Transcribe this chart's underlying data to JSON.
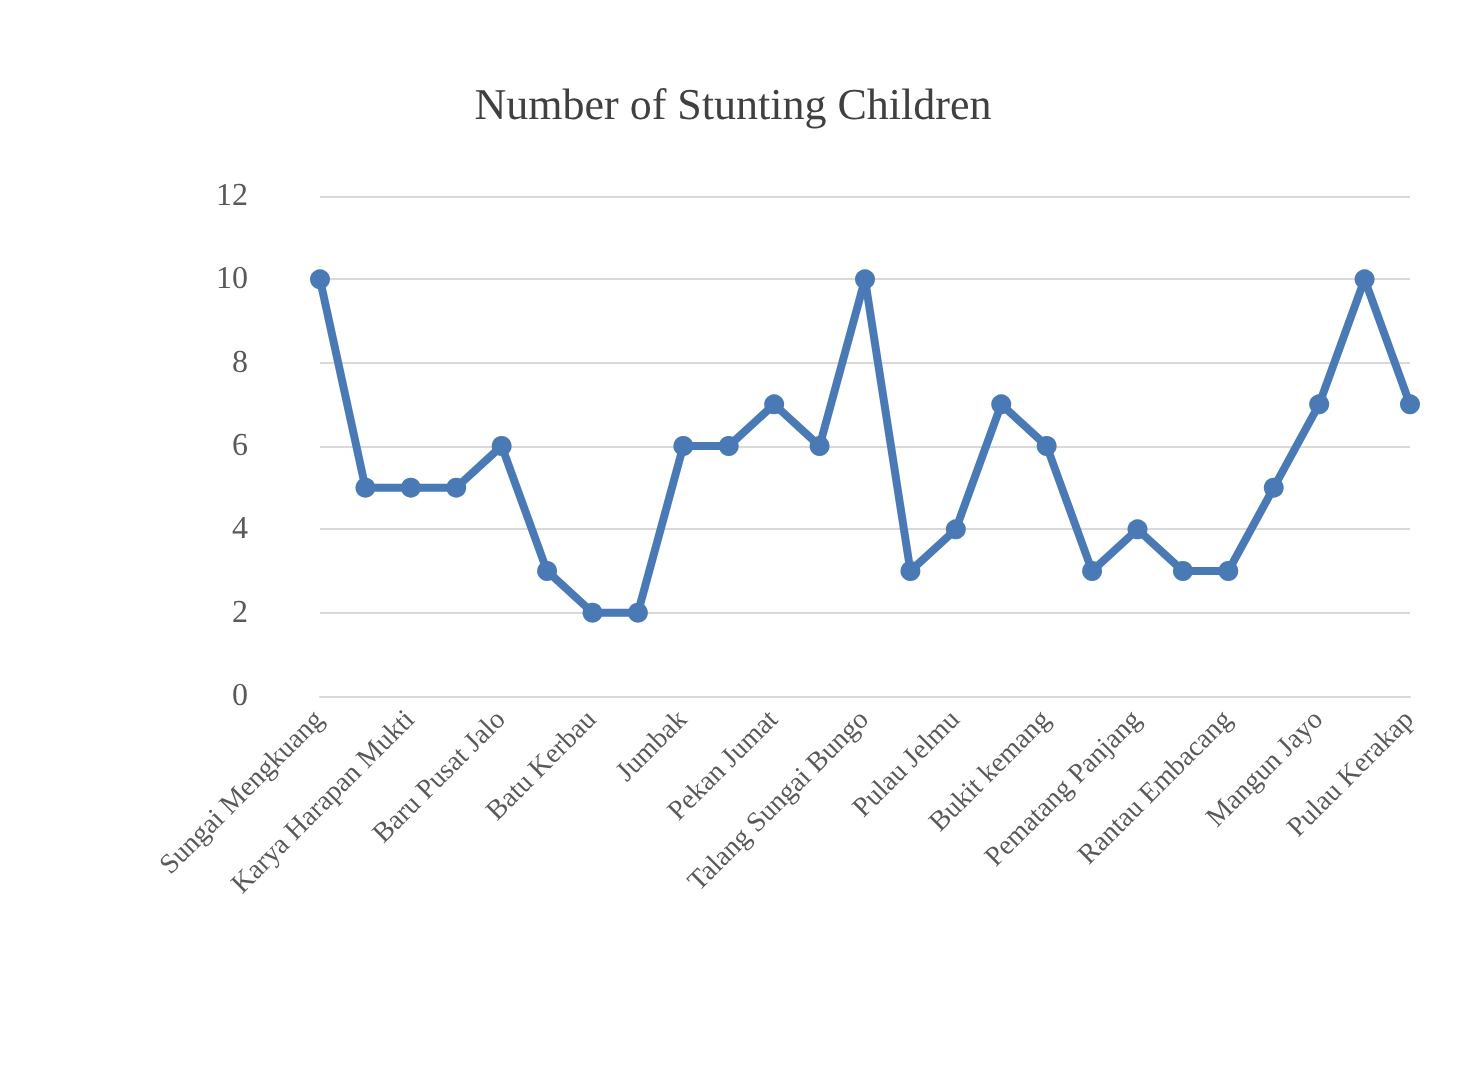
{
  "chart_data": {
    "type": "line",
    "title": "Number of Stunting Children",
    "categories": [
      "Sungai Mengkuang",
      null,
      "Karya Harapan Mukti",
      null,
      "Baru Pusat Jalo",
      null,
      "Batu Kerbau",
      null,
      "Jumbak",
      null,
      "Pekan Jumat",
      null,
      "Talang Sungai Bungo",
      null,
      "Pulau Jelmu",
      null,
      "Bukit kemang",
      null,
      "Pematang Panjang",
      null,
      "Rantau Embacang",
      null,
      "Mangun Jayo",
      null,
      "Pulau Kerakap"
    ],
    "series": [
      {
        "color": "#4a7ab5",
        "values": [
          10,
          5,
          5,
          5,
          6,
          3,
          2,
          2,
          6,
          6,
          7,
          6,
          10,
          3,
          4,
          7,
          6,
          3,
          4,
          3,
          3,
          5,
          7,
          10,
          7
        ]
      }
    ],
    "ylim": [
      0,
      12
    ],
    "yticks": [
      0,
      2,
      4,
      6,
      8,
      10,
      12
    ],
    "grid": "y",
    "marker": "circle",
    "line_style": "solid"
  }
}
